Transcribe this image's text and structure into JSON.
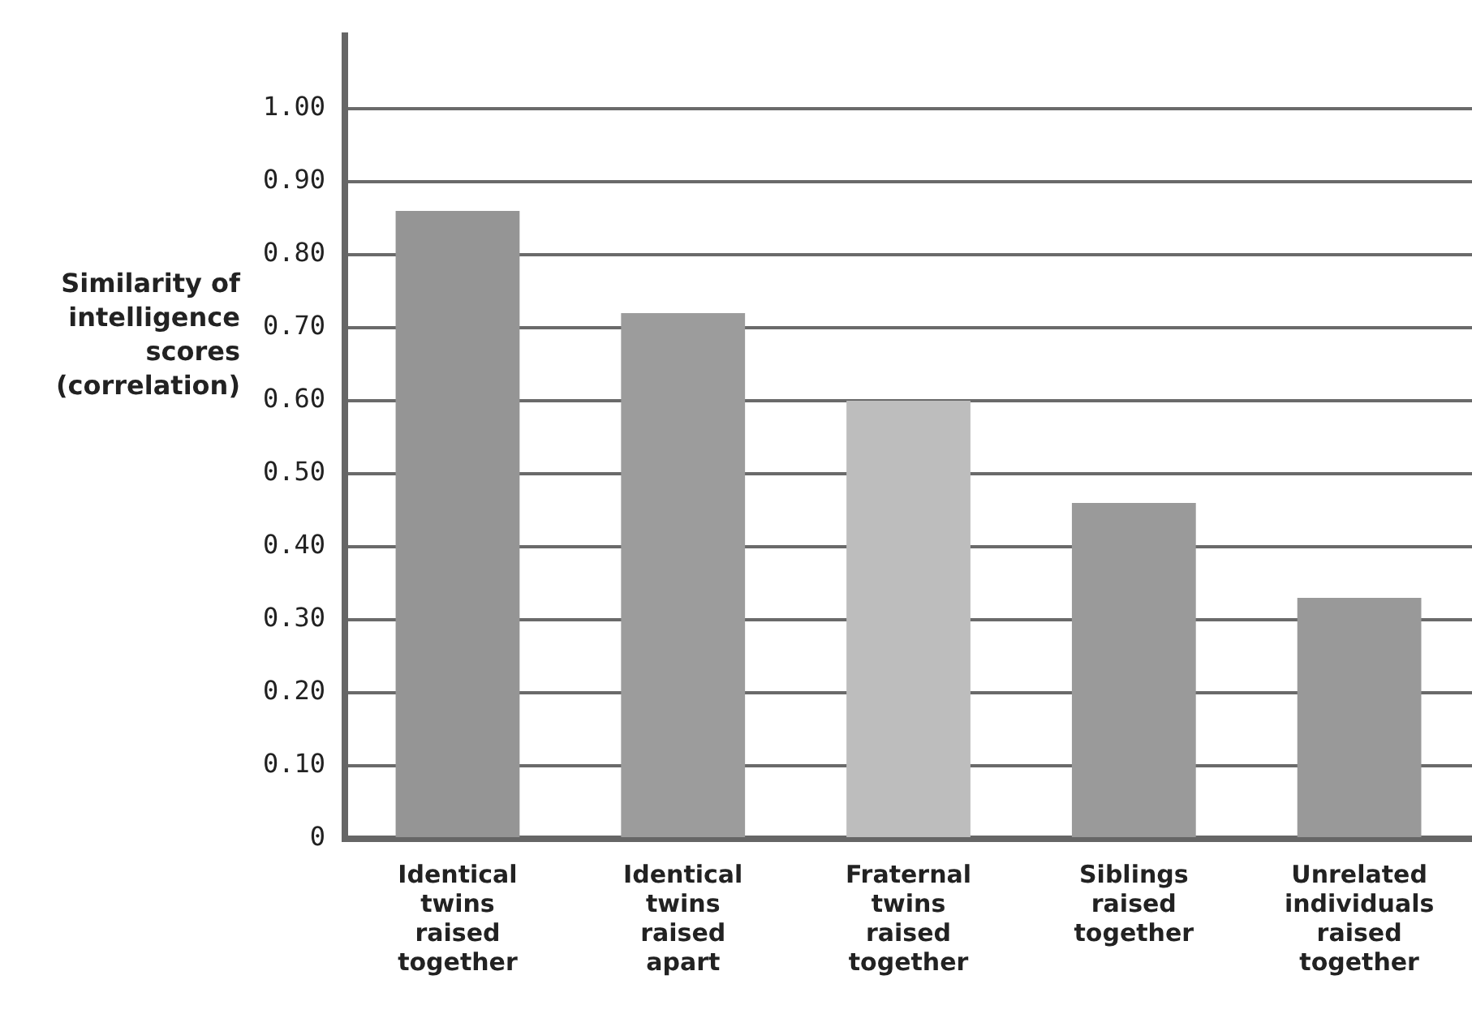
{
  "chart_data": {
    "type": "bar",
    "ylabel": "Similarity of intelligence scores (correlation)",
    "categories": [
      "Identical twins raised together",
      "Identical twins raised apart",
      "Fraternal twins raised together",
      "Siblings raised together",
      "Unrelated individuals raised together"
    ],
    "values": [
      0.86,
      0.72,
      0.6,
      0.46,
      0.33
    ],
    "colors": [
      "#959595",
      "#9c9c9c",
      "#bdbdbd",
      "#9a9a9a",
      "#999999"
    ],
    "ylim": [
      0,
      1.1
    ],
    "yticks": [
      0,
      {
        "value": 0.1,
        "label": "0.10"
      },
      {
        "value": 0.2,
        "label": "0.20"
      },
      {
        "value": 0.3,
        "label": "0.30"
      },
      {
        "value": 0.4,
        "label": "0.40"
      },
      {
        "value": 0.5,
        "label": "0.50"
      },
      {
        "value": 0.6,
        "label": "0.60"
      },
      {
        "value": 0.7,
        "label": "0.70"
      },
      {
        "value": 0.8,
        "label": "0.80"
      },
      {
        "value": 0.9,
        "label": "0.90"
      },
      {
        "value": 1,
        "label": "1.00"
      }
    ],
    "grid": "y",
    "legend": false
  }
}
